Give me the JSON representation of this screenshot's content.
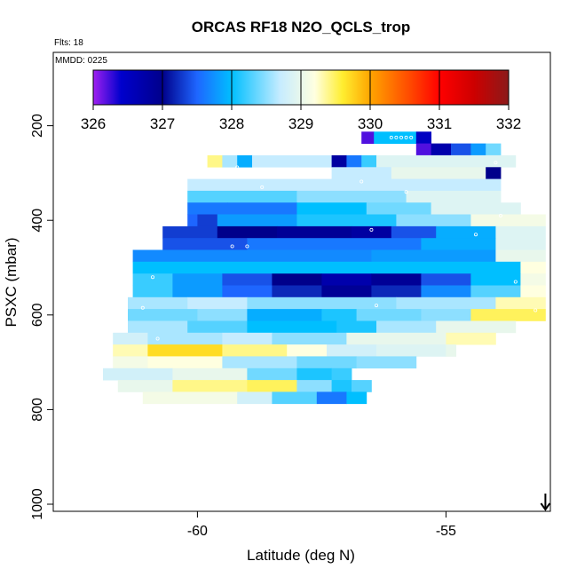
{
  "chart_data": {
    "type": "heatmap",
    "title": "ORCAS RF18 N2O_QCLS_trop",
    "flights_note": "Flts: 18",
    "date_note": "MMDD: 0225",
    "xlabel": "Latitude (deg N)",
    "ylabel": "PSXC (mbar)",
    "xlim": [
      -62.9,
      -52.9
    ],
    "ylim": [
      1015,
      45
    ],
    "y_reversed": true,
    "x_ticks": [
      -60,
      -55
    ],
    "y_ticks": [
      200,
      400,
      600,
      800,
      1000
    ],
    "colorbar": {
      "min": 326,
      "max": 332,
      "ticks": [
        326,
        327,
        328,
        329,
        330,
        331,
        332
      ],
      "stops": [
        {
          "v": 326.0,
          "color": "#a020f0"
        },
        {
          "v": 326.4,
          "color": "#0000cd"
        },
        {
          "v": 327.0,
          "color": "#00008b"
        },
        {
          "v": 327.5,
          "color": "#1e66ff"
        },
        {
          "v": 328.0,
          "color": "#00bfff"
        },
        {
          "v": 328.7,
          "color": "#c6ecff"
        },
        {
          "v": 329.2,
          "color": "#ffffe0"
        },
        {
          "v": 329.6,
          "color": "#ffee30"
        },
        {
          "v": 330.0,
          "color": "#ffa500"
        },
        {
          "v": 330.6,
          "color": "#ff4500"
        },
        {
          "v": 331.0,
          "color": "#ff0000"
        },
        {
          "v": 331.5,
          "color": "#cd0000"
        },
        {
          "v": 332.0,
          "color": "#8b1a1a"
        }
      ]
    },
    "layer_bin_mbar": 25,
    "layers": [
      {
        "p": 225,
        "cells": [
          [
            -56.7,
            -56.45,
            326.2
          ],
          [
            -56.45,
            -55.6,
            328.0
          ],
          [
            -55.6,
            -55.3,
            326.5
          ]
        ]
      },
      {
        "p": 250,
        "cells": [
          [
            -55.6,
            -55.3,
            326.2
          ],
          [
            -55.3,
            -54.9,
            326.7
          ],
          [
            -54.9,
            -54.5,
            327.4
          ],
          [
            -54.5,
            -54.2,
            327.8
          ],
          [
            -54.2,
            -53.9,
            328.4
          ]
        ]
      },
      {
        "p": 275,
        "cells": [
          [
            -59.8,
            -59.5,
            329.4
          ],
          [
            -59.5,
            -59.2,
            328.6
          ],
          [
            -59.2,
            -58.9,
            327.9
          ],
          [
            -58.9,
            -57.3,
            328.7
          ],
          [
            -57.3,
            -57.0,
            326.8
          ],
          [
            -57.0,
            -56.7,
            327.6
          ],
          [
            -56.7,
            -56.4,
            328.2
          ],
          [
            -56.4,
            -53.6,
            328.9
          ]
        ]
      },
      {
        "p": 300,
        "cells": [
          [
            -57.3,
            -56.1,
            328.7
          ],
          [
            -56.1,
            -54.2,
            329.0
          ],
          [
            -54.2,
            -53.9,
            327.0
          ]
        ]
      },
      {
        "p": 325,
        "cells": [
          [
            -60.2,
            -53.9,
            328.7
          ]
        ]
      },
      {
        "p": 350,
        "cells": [
          [
            -60.2,
            -58.0,
            328.3
          ],
          [
            -58.0,
            -55.8,
            328.5
          ],
          [
            -55.8,
            -53.9,
            328.9
          ]
        ]
      },
      {
        "p": 375,
        "cells": [
          [
            -60.2,
            -59.4,
            327.6
          ],
          [
            -59.4,
            -58.0,
            327.6
          ],
          [
            -58.0,
            -56.6,
            328.0
          ],
          [
            -56.6,
            -55.3,
            328.4
          ],
          [
            -55.3,
            -53.5,
            328.9
          ]
        ]
      },
      {
        "p": 400,
        "cells": [
          [
            -60.2,
            -60.0,
            327.5
          ],
          [
            -60.0,
            -59.6,
            327.3
          ],
          [
            -59.6,
            -58.0,
            327.8
          ],
          [
            -58.0,
            -56.0,
            328.1
          ],
          [
            -56.0,
            -54.5,
            328.5
          ],
          [
            -54.5,
            -53.0,
            329.1
          ]
        ]
      },
      {
        "p": 425,
        "cells": [
          [
            -60.7,
            -59.6,
            327.3
          ],
          [
            -59.6,
            -58.4,
            327.0
          ],
          [
            -58.4,
            -56.9,
            326.9
          ],
          [
            -56.9,
            -56.1,
            326.8
          ],
          [
            -56.1,
            -55.2,
            327.4
          ],
          [
            -55.2,
            -54.0,
            327.9
          ],
          [
            -54.0,
            -53.0,
            328.9
          ]
        ]
      },
      {
        "p": 450,
        "cells": [
          [
            -60.7,
            -59.0,
            327.4
          ],
          [
            -59.0,
            -55.5,
            327.6
          ],
          [
            -55.5,
            -54.0,
            327.9
          ],
          [
            -54.0,
            -53.0,
            328.9
          ]
        ]
      },
      {
        "p": 475,
        "cells": [
          [
            -61.3,
            -59.6,
            327.7
          ],
          [
            -59.6,
            -58.8,
            327.7
          ],
          [
            -58.8,
            -56.5,
            327.7
          ],
          [
            -56.5,
            -54.0,
            327.8
          ],
          [
            -54.0,
            -53.0,
            329.0
          ]
        ]
      },
      {
        "p": 500,
        "cells": [
          [
            -61.3,
            -53.5,
            328.0
          ],
          [
            -53.5,
            -53.0,
            329.2
          ]
        ]
      },
      {
        "p": 525,
        "cells": [
          [
            -61.3,
            -60.5,
            328.2
          ],
          [
            -60.5,
            -59.5,
            327.8
          ],
          [
            -59.5,
            -58.5,
            327.4
          ],
          [
            -58.5,
            -57.5,
            327.0
          ],
          [
            -57.5,
            -56.5,
            326.7
          ],
          [
            -56.5,
            -55.5,
            326.9
          ],
          [
            -55.5,
            -54.5,
            327.4
          ],
          [
            -54.5,
            -53.5,
            328.0
          ],
          [
            -53.5,
            -53.0,
            329.1
          ]
        ]
      },
      {
        "p": 550,
        "cells": [
          [
            -61.3,
            -60.5,
            328.2
          ],
          [
            -60.5,
            -59.5,
            327.8
          ],
          [
            -59.5,
            -58.5,
            327.5
          ],
          [
            -58.5,
            -57.5,
            327.2
          ],
          [
            -57.5,
            -56.5,
            326.9
          ],
          [
            -56.5,
            -55.5,
            327.2
          ],
          [
            -55.5,
            -54.5,
            327.7
          ],
          [
            -54.5,
            -53.5,
            328.3
          ],
          [
            -53.5,
            -53.0,
            329.2
          ]
        ]
      },
      {
        "p": 575,
        "cells": [
          [
            -61.4,
            -60.2,
            328.6
          ],
          [
            -60.2,
            -59.0,
            328.7
          ],
          [
            -59.0,
            -56.0,
            328.5
          ],
          [
            -56.0,
            -54.0,
            328.6
          ],
          [
            -54.0,
            -53.0,
            329.3
          ]
        ]
      },
      {
        "p": 600,
        "cells": [
          [
            -61.4,
            -60.0,
            328.4
          ],
          [
            -60.0,
            -59.0,
            328.5
          ],
          [
            -59.0,
            -57.5,
            327.9
          ],
          [
            -57.5,
            -56.8,
            328.1
          ],
          [
            -56.8,
            -55.5,
            328.4
          ],
          [
            -55.5,
            -54.5,
            328.5
          ],
          [
            -54.5,
            -53.0,
            329.5
          ]
        ]
      },
      {
        "p": 625,
        "cells": [
          [
            -61.4,
            -60.2,
            328.6
          ],
          [
            -60.2,
            -59.0,
            328.3
          ],
          [
            -59.0,
            -57.2,
            328.0
          ],
          [
            -57.2,
            -56.4,
            328.1
          ],
          [
            -56.4,
            -55.2,
            328.6
          ],
          [
            -55.2,
            -53.6,
            329.0
          ]
        ]
      },
      {
        "p": 650,
        "cells": [
          [
            -61.7,
            -61.0,
            328.8
          ],
          [
            -61.0,
            -59.5,
            328.6
          ],
          [
            -59.5,
            -58.5,
            328.7
          ],
          [
            -58.5,
            -57.0,
            328.5
          ],
          [
            -57.0,
            -55.0,
            329.0
          ],
          [
            -55.0,
            -54.0,
            329.3
          ]
        ]
      },
      {
        "p": 675,
        "cells": [
          [
            -61.7,
            -61.0,
            329.3
          ],
          [
            -61.0,
            -59.5,
            329.7
          ],
          [
            -59.5,
            -58.2,
            329.4
          ],
          [
            -58.2,
            -57.4,
            329.2
          ],
          [
            -57.4,
            -56.4,
            328.8
          ],
          [
            -56.4,
            -55.0,
            328.9
          ],
          [
            -55.0,
            -54.8,
            329.0
          ]
        ]
      },
      {
        "p": 700,
        "cells": [
          [
            -61.7,
            -61.0,
            329.1
          ],
          [
            -61.0,
            -59.5,
            329.2
          ],
          [
            -59.5,
            -58.0,
            328.6
          ],
          [
            -58.0,
            -56.8,
            328.4
          ],
          [
            -56.8,
            -55.6,
            328.5
          ]
        ]
      },
      {
        "p": 725,
        "cells": [
          [
            -61.9,
            -60.5,
            328.8
          ],
          [
            -60.5,
            -59.0,
            329.0
          ],
          [
            -59.0,
            -58.0,
            328.4
          ],
          [
            -58.0,
            -57.3,
            328.1
          ],
          [
            -57.3,
            -56.9,
            328.2
          ]
        ]
      },
      {
        "p": 750,
        "cells": [
          [
            -61.6,
            -60.5,
            329.0
          ],
          [
            -60.5,
            -59.0,
            329.4
          ],
          [
            -59.0,
            -58.0,
            329.5
          ],
          [
            -58.0,
            -57.3,
            328.5
          ],
          [
            -57.3,
            -56.9,
            328.1
          ],
          [
            -56.9,
            -56.5,
            328.3
          ]
        ]
      },
      {
        "p": 775,
        "cells": [
          [
            -61.1,
            -59.2,
            329.1
          ],
          [
            -59.2,
            -58.5,
            328.8
          ],
          [
            -58.5,
            -57.6,
            328.3
          ],
          [
            -57.6,
            -57.0,
            327.6
          ],
          [
            -57.0,
            -56.6,
            328.0
          ]
        ]
      }
    ],
    "psxc_samples": [
      {
        "lat": -56.0,
        "p": 225
      },
      {
        "lat": -55.9,
        "p": 225
      },
      {
        "lat": -55.8,
        "p": 225
      },
      {
        "lat": -55.7,
        "p": 225
      },
      {
        "lat": -56.1,
        "p": 225
      },
      {
        "lat": -54.0,
        "p": 278
      },
      {
        "lat": -59.2,
        "p": 288
      },
      {
        "lat": -56.7,
        "p": 318
      },
      {
        "lat": -58.7,
        "p": 330
      },
      {
        "lat": -55.8,
        "p": 340
      },
      {
        "lat": -53.9,
        "p": 390
      },
      {
        "lat": -59.3,
        "p": 455
      },
      {
        "lat": -59.0,
        "p": 455
      },
      {
        "lat": -56.5,
        "p": 420
      },
      {
        "lat": -54.4,
        "p": 430
      },
      {
        "lat": -60.9,
        "p": 520
      },
      {
        "lat": -53.6,
        "p": 530
      },
      {
        "lat": -61.1,
        "p": 585
      },
      {
        "lat": -56.4,
        "p": 580
      },
      {
        "lat": -53.2,
        "p": 590
      },
      {
        "lat": -60.8,
        "p": 650
      },
      {
        "lat": -53.0,
        "p": 690
      },
      {
        "lat": -56.4,
        "p": 765
      },
      {
        "lat": -53.7,
        "p": 750
      },
      {
        "lat": -61.0,
        "p": 830
      },
      {
        "lat": -57.2,
        "p": 845
      },
      {
        "lat": -58.1,
        "p": 905
      },
      {
        "lat": -57.0,
        "p": 910
      },
      {
        "lat": -60.3,
        "p": 945
      },
      {
        "lat": -60.0,
        "p": 950
      },
      {
        "lat": -57.9,
        "p": 965
      },
      {
        "lat": -56.6,
        "p": 955
      },
      {
        "lat": -57.0,
        "p": 975
      }
    ]
  },
  "surface_arrow_lat": -53.0
}
